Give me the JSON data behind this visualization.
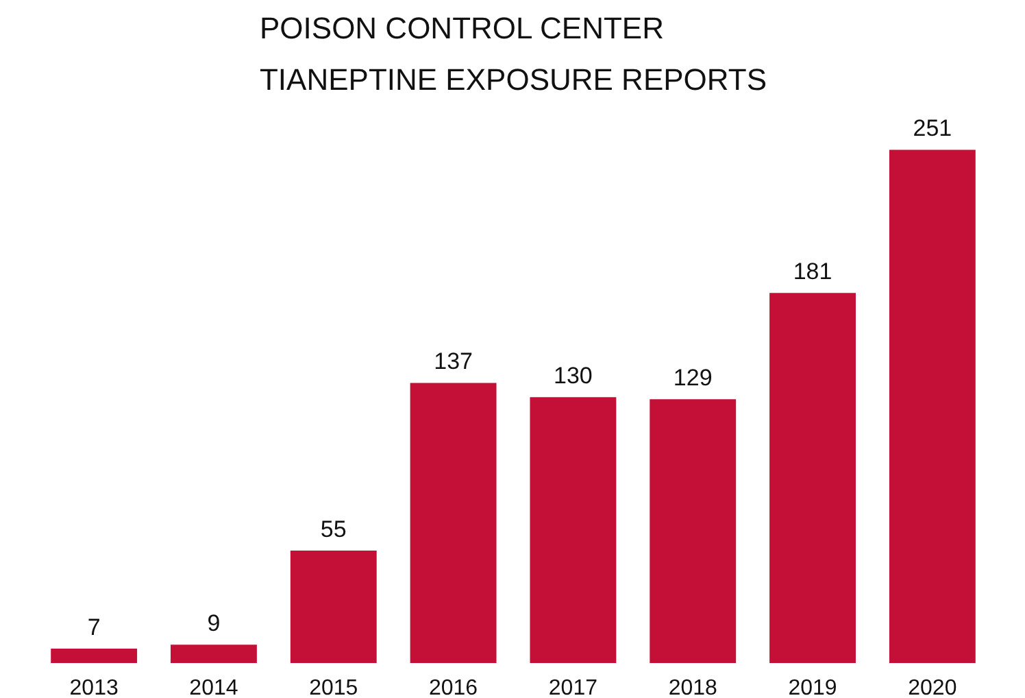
{
  "chart_data": {
    "type": "bar",
    "title": "POISON CONTROL CENTER\nTIANEPTINE EXPOSURE REPORTS",
    "categories": [
      "2013",
      "2014",
      "2015",
      "2016",
      "2017",
      "2018",
      "2019",
      "2020"
    ],
    "values": [
      7,
      9,
      55,
      137,
      130,
      129,
      181,
      251
    ],
    "color": "#c41037",
    "data_labels": true,
    "grid": false
  }
}
